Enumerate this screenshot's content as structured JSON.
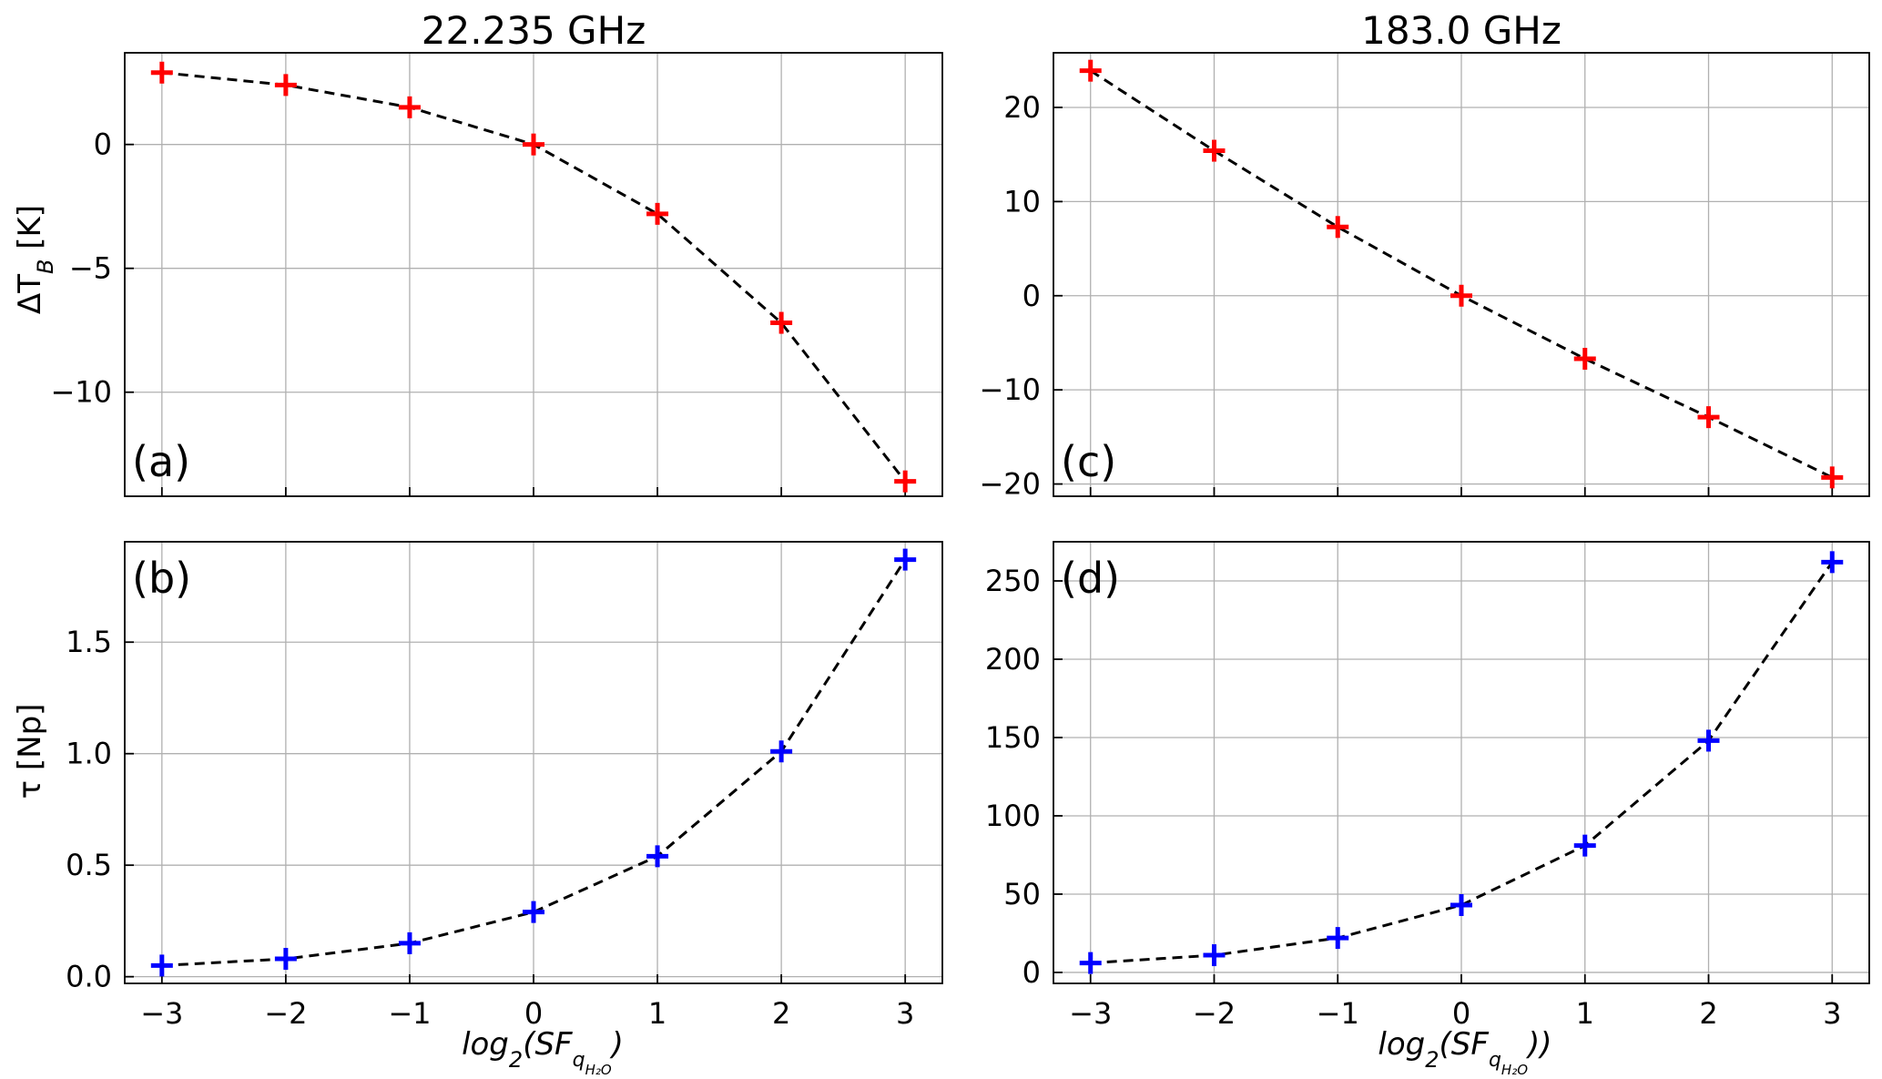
{
  "figure": {
    "xlabel_left": "log2(SFqH2O)",
    "xlabel_right": "log2(SFqH2O))",
    "ylabel_top": "ΔTB [K]",
    "ylabel_bottom": "τ [Np]"
  },
  "chart_data": [
    {
      "panel": "(a)",
      "type": "line",
      "title": "22.235 GHz",
      "xlabel": "",
      "ylabel": "ΔTB [K]",
      "x": [
        -3,
        -2,
        -1,
        0,
        1,
        2,
        3
      ],
      "xticks": [],
      "yticks": [
        "−10",
        "−5",
        "0"
      ],
      "yticks_values": [
        -10,
        -5,
        0
      ],
      "xlim": [
        -3.3,
        3.3
      ],
      "ylim": [
        -14.2,
        3.7
      ],
      "grid": true,
      "series": [
        {
          "values": [
            2.9,
            2.4,
            1.5,
            0.0,
            -2.8,
            -7.2,
            -13.6
          ],
          "marker": "+",
          "marker_color": "#ff0000",
          "line_style": "dashed",
          "line_color": "#000000"
        }
      ]
    },
    {
      "panel": "(b)",
      "type": "line",
      "title": "",
      "xlabel": "log2(SFqH2O)",
      "ylabel": "τ [Np]",
      "x": [
        -3,
        -2,
        -1,
        0,
        1,
        2,
        3
      ],
      "xticks": [
        "−3",
        "−2",
        "−1",
        "0",
        "1",
        "2",
        "3"
      ],
      "xticks_values": [
        -3,
        -2,
        -1,
        0,
        1,
        2,
        3
      ],
      "yticks": [
        "0.0",
        "0.5",
        "1.0",
        "1.5"
      ],
      "yticks_values": [
        0,
        0.5,
        1.0,
        1.5
      ],
      "xlim": [
        -3.3,
        3.3
      ],
      "ylim": [
        -0.03,
        1.95
      ],
      "grid": true,
      "series": [
        {
          "values": [
            0.05,
            0.08,
            0.15,
            0.29,
            0.54,
            1.01,
            1.87
          ],
          "marker": "+",
          "marker_color": "#0000ff",
          "line_style": "dashed",
          "line_color": "#000000"
        }
      ]
    },
    {
      "panel": "(c)",
      "type": "line",
      "title": "183.0 GHz",
      "xlabel": "",
      "ylabel": "",
      "x": [
        -3,
        -2,
        -1,
        0,
        1,
        2,
        3
      ],
      "xticks": [],
      "yticks": [
        "−20",
        "−10",
        "0",
        "10",
        "20"
      ],
      "yticks_values": [
        -20,
        -10,
        0,
        10,
        20
      ],
      "xlim": [
        -3.3,
        3.3
      ],
      "ylim": [
        -21.3,
        25.8
      ],
      "grid": true,
      "series": [
        {
          "values": [
            23.9,
            15.4,
            7.3,
            0.0,
            -6.7,
            -12.9,
            -19.3
          ],
          "marker": "+",
          "marker_color": "#ff0000",
          "line_style": "dashed",
          "line_color": "#000000"
        }
      ]
    },
    {
      "panel": "(d)",
      "type": "line",
      "title": "",
      "xlabel": "log2(SFqH2O))",
      "ylabel": "",
      "x": [
        -3,
        -2,
        -1,
        0,
        1,
        2,
        3
      ],
      "xticks": [
        "−3",
        "−2",
        "−1",
        "0",
        "1",
        "2",
        "3"
      ],
      "xticks_values": [
        -3,
        -2,
        -1,
        0,
        1,
        2,
        3
      ],
      "yticks": [
        "0",
        "50",
        "100",
        "150",
        "200",
        "250"
      ],
      "yticks_values": [
        0,
        50,
        100,
        150,
        200,
        250
      ],
      "xlim": [
        -3.3,
        3.3
      ],
      "ylim": [
        -7,
        275
      ],
      "grid": true,
      "series": [
        {
          "values": [
            6,
            11,
            22,
            43,
            81,
            148,
            262
          ],
          "marker": "+",
          "marker_color": "#0000ff",
          "line_style": "dashed",
          "line_color": "#000000"
        }
      ]
    }
  ]
}
